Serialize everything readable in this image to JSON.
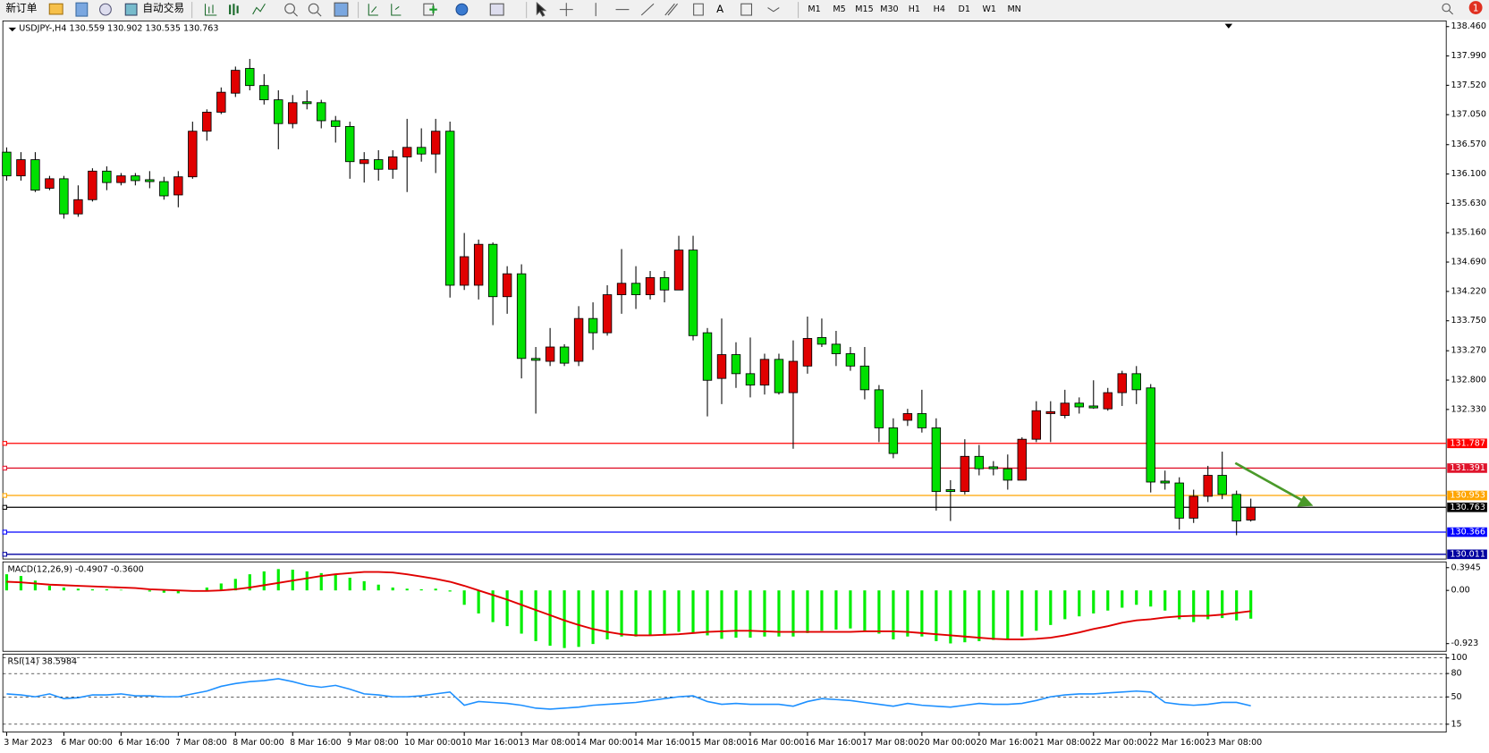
{
  "toolbar": {
    "buttons": [
      "新订单",
      "自动交易"
    ],
    "timeframes": [
      "M1",
      "M5",
      "M15",
      "M30",
      "H1",
      "H4",
      "D1",
      "W1",
      "MN"
    ],
    "badge": "1"
  },
  "chart_data": [
    {
      "type": "candlestick",
      "title": "USDJPY-,H4  130.559 130.902 130.535 130.763",
      "up_color": "#e00000",
      "down_color": "#00e000",
      "ylim": [
        129.935,
        138.551
      ],
      "yticks": [
        {
          "value": 138.46,
          "label": "138.460"
        },
        {
          "value": 137.99,
          "label": "137.990"
        },
        {
          "value": 137.52,
          "label": "137.520"
        },
        {
          "value": 137.05,
          "label": "137.050"
        },
        {
          "value": 136.57,
          "label": "136.570"
        },
        {
          "value": 136.1,
          "label": "136.100"
        },
        {
          "value": 135.63,
          "label": "135.630"
        },
        {
          "value": 135.16,
          "label": "135.160"
        },
        {
          "value": 134.69,
          "label": "134.690"
        },
        {
          "value": 134.22,
          "label": "134.220"
        },
        {
          "value": 133.75,
          "label": "133.750"
        },
        {
          "value": 133.27,
          "label": "133.270"
        },
        {
          "value": 132.8,
          "label": "132.800"
        },
        {
          "value": 132.33,
          "label": "132.330"
        }
      ],
      "levels": [
        {
          "value": 131.787,
          "color": "#ff0000"
        },
        {
          "value": 131.391,
          "color": "#e0142c"
        },
        {
          "value": 130.953,
          "color": "#ffa500"
        },
        {
          "value": 130.763,
          "color": "#000000"
        },
        {
          "value": 130.366,
          "color": "#0000ff"
        },
        {
          "value": 130.011,
          "color": "#0000a0"
        }
      ],
      "categories": [
        "3 Mar 2023",
        null,
        null,
        null,
        "6 Mar 00:00",
        null,
        null,
        null,
        "6 Mar 16:00",
        null,
        null,
        null,
        "7 Mar 08:00",
        null,
        null,
        null,
        "8 Mar 00:00",
        null,
        null,
        null,
        "8 Mar 16:00",
        null,
        null,
        null,
        "9 Mar 08:00",
        null,
        null,
        null,
        "10 Mar 00:00",
        null,
        null,
        null,
        "10 Mar 16:00",
        null,
        null,
        null,
        "13 Mar 08:00",
        null,
        null,
        null,
        "14 Mar 00:00",
        null,
        null,
        null,
        "14 Mar 16:00",
        null,
        null,
        null,
        "15 Mar 08:00",
        null,
        null,
        null,
        "16 Mar 00:00",
        null,
        null,
        null,
        "16 Mar 16:00",
        null,
        null,
        null,
        "17 Mar 08:00",
        null,
        null,
        null,
        "20 Mar 00:00",
        null,
        null,
        null,
        "20 Mar 16:00",
        null,
        null,
        null,
        "21 Mar 08:00",
        null,
        null,
        null,
        "22 Mar 00:00",
        null,
        null,
        null,
        "22 Mar 16:00",
        null,
        null,
        null,
        "23 Mar 08:00",
        null,
        null,
        null
      ],
      "ohlc": [
        [
          136.45,
          136.526,
          135.994,
          136.07
        ],
        [
          136.07,
          136.45,
          135.994,
          136.329
        ],
        [
          136.329,
          136.45,
          135.811,
          135.841
        ],
        [
          135.872,
          136.07,
          135.841,
          136.024
        ],
        [
          136.024,
          136.07,
          135.385,
          135.461
        ],
        [
          135.461,
          135.918,
          135.415,
          135.689
        ],
        [
          135.689,
          136.192,
          135.659,
          136.146
        ],
        [
          136.146,
          136.222,
          135.841,
          135.963
        ],
        [
          135.963,
          136.115,
          135.918,
          136.07
        ],
        [
          136.07,
          136.115,
          135.918,
          135.994
        ],
        [
          136.009,
          136.146,
          135.872,
          135.978
        ],
        [
          135.978,
          136.055,
          135.689,
          135.75
        ],
        [
          135.765,
          136.146,
          135.567,
          136.055
        ],
        [
          136.055,
          136.938,
          136.024,
          136.785
        ],
        [
          136.785,
          137.135,
          136.633,
          137.09
        ],
        [
          137.09,
          137.486,
          137.059,
          137.409
        ],
        [
          137.394,
          137.82,
          137.333,
          137.76
        ],
        [
          137.79,
          137.942,
          137.44,
          137.516
        ],
        [
          137.516,
          137.699,
          137.212,
          137.288
        ],
        [
          137.288,
          137.44,
          136.496,
          136.907
        ],
        [
          136.907,
          137.364,
          136.831,
          137.242
        ],
        [
          137.257,
          137.44,
          137.135,
          137.227
        ],
        [
          137.242,
          137.288,
          136.831,
          136.953
        ],
        [
          136.953,
          137.029,
          136.603,
          136.861
        ],
        [
          136.861,
          136.938,
          136.024,
          136.298
        ],
        [
          136.268,
          136.45,
          135.963,
          136.329
        ],
        [
          136.329,
          136.481,
          135.994,
          136.176
        ],
        [
          136.176,
          136.481,
          136.024,
          136.374
        ],
        [
          136.374,
          136.983,
          135.811,
          136.526
        ],
        [
          136.526,
          136.831,
          136.298,
          136.42
        ],
        [
          136.42,
          136.983,
          136.115,
          136.785
        ],
        [
          136.785,
          136.938,
          134.121,
          134.319
        ],
        [
          134.319,
          135.156,
          134.243,
          134.776
        ],
        [
          134.319,
          135.05,
          134.091,
          134.974
        ],
        [
          134.974,
          135.004,
          133.68,
          134.136
        ],
        [
          134.136,
          134.624,
          133.862,
          134.502
        ],
        [
          134.502,
          134.654,
          132.827,
          133.147
        ],
        [
          133.147,
          133.33,
          132.264,
          133.117
        ],
        [
          133.101,
          133.634,
          133.025,
          133.33
        ],
        [
          133.33,
          133.375,
          133.025,
          133.071
        ],
        [
          133.101,
          133.984,
          133.025,
          133.786
        ],
        [
          133.786,
          134.045,
          133.284,
          133.558
        ],
        [
          133.558,
          134.319,
          133.512,
          134.167
        ],
        [
          134.167,
          134.898,
          133.862,
          134.35
        ],
        [
          134.35,
          134.624,
          133.939,
          134.167
        ],
        [
          134.167,
          134.547,
          134.091,
          134.441
        ],
        [
          134.441,
          134.547,
          134.045,
          134.243
        ],
        [
          134.243,
          135.111,
          134.243,
          134.882
        ],
        [
          134.882,
          135.111,
          133.436,
          133.512
        ],
        [
          133.558,
          133.634,
          132.219,
          132.797
        ],
        [
          132.827,
          133.786,
          132.416,
          133.208
        ],
        [
          133.208,
          133.406,
          132.675,
          132.903
        ],
        [
          132.903,
          133.482,
          132.523,
          132.721
        ],
        [
          132.721,
          133.223,
          132.569,
          133.132
        ],
        [
          133.132,
          133.223,
          132.569,
          132.599
        ],
        [
          132.599,
          133.436,
          131.701,
          133.101
        ],
        [
          133.025,
          133.817,
          132.903,
          133.467
        ],
        [
          133.482,
          133.786,
          133.33,
          133.375
        ],
        [
          133.375,
          133.588,
          133.025,
          133.223
        ],
        [
          133.223,
          133.33,
          132.949,
          133.025
        ],
        [
          133.025,
          133.33,
          132.492,
          132.645
        ],
        [
          132.645,
          132.721,
          131.807,
          132.036
        ],
        [
          132.036,
          132.188,
          131.549,
          131.625
        ],
        [
          132.157,
          132.34,
          132.066,
          132.264
        ],
        [
          132.264,
          132.645,
          131.96,
          132.036
        ],
        [
          132.036,
          132.188,
          130.711,
          131.016
        ],
        [
          131.046,
          131.198,
          130.544,
          131.016
        ],
        [
          131.016,
          131.853,
          130.97,
          131.579
        ],
        [
          131.579,
          131.762,
          131.275,
          131.381
        ],
        [
          131.412,
          131.503,
          131.275,
          131.381
        ],
        [
          131.381,
          131.609,
          131.046,
          131.198
        ],
        [
          131.198,
          131.884,
          131.198,
          131.853
        ],
        [
          131.853,
          132.462,
          131.807,
          132.31
        ],
        [
          132.264,
          132.462,
          131.807,
          132.295
        ],
        [
          132.234,
          132.645,
          132.188,
          132.431
        ],
        [
          132.431,
          132.523,
          132.264,
          132.371
        ],
        [
          132.386,
          132.797,
          132.34,
          132.355
        ],
        [
          132.34,
          132.675,
          132.31,
          132.599
        ],
        [
          132.599,
          132.949,
          132.386,
          132.903
        ],
        [
          132.903,
          133.025,
          132.416,
          132.645
        ],
        [
          132.675,
          132.736,
          131.001,
          131.168
        ],
        [
          131.183,
          131.351,
          131.046,
          131.153
        ],
        [
          131.153,
          131.244,
          130.407,
          130.59
        ],
        [
          130.59,
          131.046,
          130.513,
          130.94
        ],
        [
          130.94,
          131.427,
          130.848,
          131.275
        ],
        [
          131.275,
          131.655,
          130.894,
          130.97
        ],
        [
          130.97,
          131.031,
          130.316,
          130.544
        ],
        [
          130.559,
          130.902,
          130.535,
          130.763
        ]
      ]
    },
    {
      "type": "macd",
      "title": "MACD(12,26,9) -0.4907 -0.3600",
      "ylim": [
        -1.056,
        0.4945
      ],
      "yticks": [
        0.3945,
        {
          "value": 0,
          "label": "0.00"
        },
        -0.923
      ],
      "series": [
        {
          "kind": "bar",
          "color": "#00ee00",
          "values": [
            0.28,
            0.25,
            0.17,
            0.08,
            0.05,
            0.03,
            0.02,
            0.02,
            0.01,
            0.0,
            -0.02,
            -0.04,
            -0.05,
            -0.02,
            0.05,
            0.12,
            0.2,
            0.28,
            0.33,
            0.37,
            0.36,
            0.33,
            0.3,
            0.28,
            0.22,
            0.16,
            0.1,
            0.05,
            0.03,
            0.02,
            0.03,
            -0.02,
            -0.25,
            -0.4,
            -0.55,
            -0.62,
            -0.75,
            -0.88,
            -0.96,
            -1.0,
            -0.98,
            -0.93,
            -0.85,
            -0.8,
            -0.8,
            -0.78,
            -0.78,
            -0.72,
            -0.75,
            -0.78,
            -0.84,
            -0.82,
            -0.82,
            -0.8,
            -0.8,
            -0.8,
            -0.74,
            -0.7,
            -0.68,
            -0.66,
            -0.7,
            -0.75,
            -0.85,
            -0.8,
            -0.8,
            -0.88,
            -0.92,
            -0.9,
            -0.88,
            -0.86,
            -0.85,
            -0.8,
            -0.7,
            -0.6,
            -0.5,
            -0.45,
            -0.4,
            -0.35,
            -0.3,
            -0.25,
            -0.28,
            -0.35,
            -0.5,
            -0.55,
            -0.5,
            -0.48,
            -0.52,
            -0.4907
          ]
        },
        {
          "kind": "line",
          "color": "#e00000",
          "values": [
            0.15,
            0.14,
            0.12,
            0.1,
            0.09,
            0.08,
            0.07,
            0.06,
            0.05,
            0.04,
            0.02,
            0.01,
            0.0,
            -0.01,
            -0.01,
            0.0,
            0.02,
            0.05,
            0.09,
            0.13,
            0.17,
            0.21,
            0.25,
            0.28,
            0.3,
            0.32,
            0.32,
            0.31,
            0.28,
            0.24,
            0.2,
            0.15,
            0.08,
            0.0,
            -0.08,
            -0.16,
            -0.25,
            -0.34,
            -0.43,
            -0.52,
            -0.6,
            -0.67,
            -0.72,
            -0.76,
            -0.78,
            -0.78,
            -0.77,
            -0.76,
            -0.74,
            -0.72,
            -0.71,
            -0.7,
            -0.7,
            -0.71,
            -0.72,
            -0.72,
            -0.72,
            -0.72,
            -0.72,
            -0.72,
            -0.71,
            -0.71,
            -0.71,
            -0.72,
            -0.74,
            -0.76,
            -0.78,
            -0.8,
            -0.82,
            -0.84,
            -0.85,
            -0.85,
            -0.84,
            -0.82,
            -0.78,
            -0.73,
            -0.67,
            -0.62,
            -0.56,
            -0.52,
            -0.5,
            -0.47,
            -0.45,
            -0.44,
            -0.44,
            -0.42,
            -0.39,
            -0.36
          ]
        }
      ]
    },
    {
      "type": "line",
      "title": "RSI(14) 38.5984",
      "ylim": [
        4.9,
        104.9
      ],
      "yticks": [
        100,
        80,
        50,
        15
      ],
      "grid": "dashed",
      "series": [
        {
          "kind": "line",
          "color": "#1e90ff",
          "values": [
            53.9,
            52.6,
            50.2,
            53.9,
            47.8,
            49.0,
            52.6,
            52.6,
            53.9,
            51.4,
            51.4,
            50.2,
            50.2,
            53.9,
            57.5,
            63.6,
            67.2,
            69.6,
            70.9,
            73.3,
            69.6,
            64.8,
            62.4,
            64.8,
            59.9,
            53.9,
            52.6,
            50.2,
            50.2,
            51.4,
            53.9,
            56.3,
            39.3,
            44.1,
            42.9,
            41.7,
            39.3,
            35.6,
            34.4,
            35.6,
            36.9,
            39.3,
            40.5,
            41.7,
            42.9,
            45.4,
            47.8,
            50.2,
            51.4,
            44.1,
            40.5,
            41.7,
            40.5,
            40.5,
            40.5,
            38.1,
            44.1,
            47.8,
            46.6,
            45.4,
            42.9,
            40.5,
            38.1,
            41.7,
            39.3,
            38.1,
            36.9,
            39.3,
            41.7,
            40.5,
            40.5,
            41.7,
            45.4,
            50.2,
            52.6,
            53.9,
            53.9,
            55.1,
            56.3,
            57.5,
            56.3,
            42.9,
            40.5,
            39.3,
            40.5,
            42.9,
            42.9,
            38.5984
          ]
        }
      ]
    }
  ]
}
